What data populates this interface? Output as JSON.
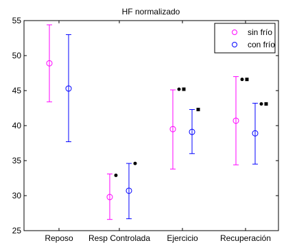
{
  "chart_data": {
    "type": "errorbar",
    "title": "HF normalizado",
    "xlabel": "",
    "ylabel": "",
    "categories": [
      "Reposo",
      "Resp Controlada",
      "Ejercicio",
      "Recuperación"
    ],
    "ylim": [
      25,
      55
    ],
    "yticks": [
      25,
      30,
      35,
      40,
      45,
      50,
      55
    ],
    "grid": false,
    "legend_position": "top-right",
    "series": [
      {
        "name": "sin frío",
        "color": "#ff00ff",
        "marker": "circle",
        "values": [
          48.9,
          29.8,
          39.5,
          40.7
        ],
        "lower": [
          43.4,
          26.6,
          33.8,
          34.4
        ],
        "upper": [
          54.4,
          33.1,
          45.1,
          47.0
        ]
      },
      {
        "name": "con frío",
        "color": "#0000ff",
        "marker": "circle",
        "values": [
          45.3,
          30.7,
          39.1,
          38.9
        ],
        "lower": [
          37.7,
          26.7,
          36.0,
          34.5
        ],
        "upper": [
          53.0,
          34.6,
          42.3,
          43.2
        ]
      }
    ],
    "significance_marks": [
      {
        "category": "Resp Controlada",
        "series": "sin frío",
        "y": 32.9,
        "marks": [
          "dot"
        ]
      },
      {
        "category": "Resp Controlada",
        "series": "con frío",
        "y": 34.6,
        "marks": [
          "dot"
        ]
      },
      {
        "category": "Ejercicio",
        "series": "sin frío",
        "y": 45.2,
        "marks": [
          "dot",
          "square"
        ]
      },
      {
        "category": "Ejercicio",
        "series": "con frío",
        "y": 42.3,
        "marks": [
          "square"
        ]
      },
      {
        "category": "Recuperación",
        "series": "sin frío",
        "y": 46.6,
        "marks": [
          "dot",
          "square"
        ]
      },
      {
        "category": "Recuperación",
        "series": "con frío",
        "y": 43.1,
        "marks": [
          "dot",
          "square"
        ]
      }
    ]
  }
}
